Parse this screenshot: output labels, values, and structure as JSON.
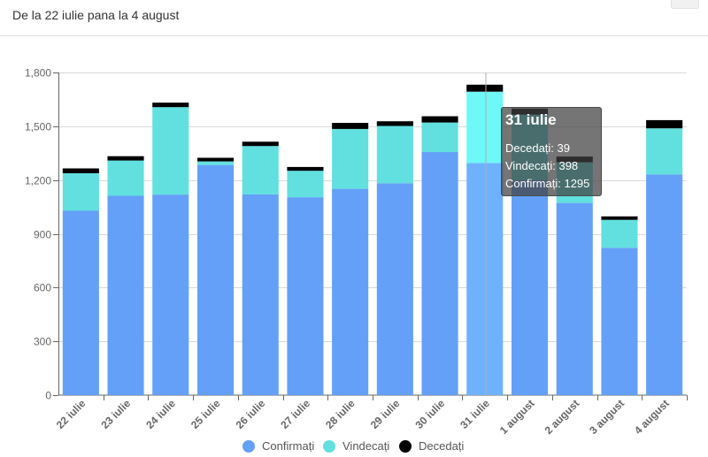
{
  "header": {
    "subtitle": "De la 22 iulie pana la 4 august"
  },
  "chart_data": {
    "type": "bar",
    "stacked": true,
    "categories": [
      "22 iulie",
      "23 iulie",
      "24 iulie",
      "25 iulie",
      "26 iulie",
      "27 iulie",
      "28 iulie",
      "29 iulie",
      "30 iulie",
      "31 iulie",
      "1 august",
      "2 august",
      "3 august",
      "4 august"
    ],
    "series": [
      {
        "name": "Confirmați",
        "color": "#64a0f7",
        "values": [
          1030,
          1112,
          1119,
          1284,
          1120,
          1104,
          1151,
          1182,
          1356,
          1295,
          1200,
          1072,
          822,
          1231
        ]
      },
      {
        "name": "Vindecați",
        "color": "#62e0e0",
        "values": [
          208,
          197,
          488,
          20,
          270,
          148,
          334,
          320,
          165,
          398,
          365,
          227,
          156,
          257
        ]
      },
      {
        "name": "Decedați",
        "color": "#000000",
        "values": [
          27,
          24,
          25,
          20,
          24,
          21,
          34,
          26,
          35,
          39,
          34,
          32,
          19,
          46
        ]
      }
    ],
    "yticks": [
      "0",
      "300",
      "600",
      "900",
      "1,200",
      "1,500",
      "1,800"
    ],
    "ylim": [
      0,
      1800
    ],
    "grid": true,
    "legend_position": "bottom",
    "highlight_index": 9,
    "highlight_colors": [
      "#6eb2ff",
      "#6ef8f8",
      "#000000"
    ]
  },
  "tooltip": {
    "title": "31 iulie",
    "rows": [
      {
        "label": "Decedați: 39"
      },
      {
        "label": "Vindecați: 398"
      },
      {
        "label": "Confirmați: 1295"
      }
    ]
  }
}
